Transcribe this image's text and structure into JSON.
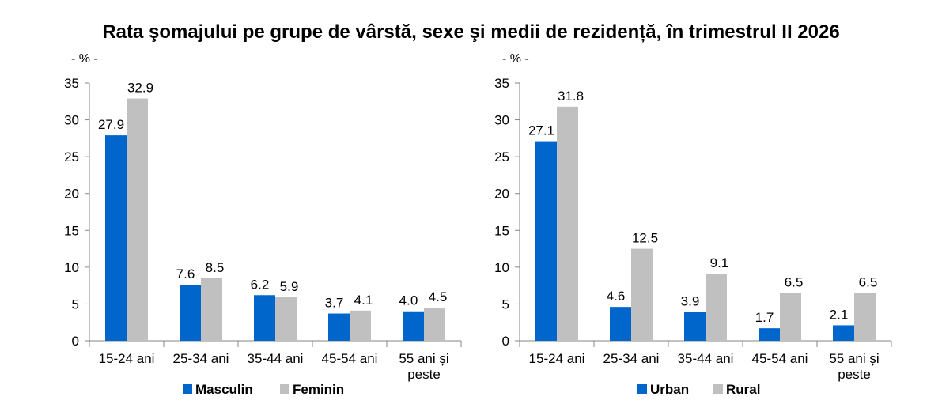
{
  "title": "Rata şomajului pe grupe de vârstă, sexe şi medii de rezidență, în trimestrul II 2026",
  "colors": {
    "series_a": "#0066cc",
    "series_b": "#c0c0c0",
    "axis": "#868686"
  },
  "chart_data": [
    {
      "type": "bar",
      "unit_label": "- % -",
      "categories": [
        [
          "15-24 ani"
        ],
        [
          "25-34 ani"
        ],
        [
          "35-44 ani"
        ],
        [
          "45-54 ani"
        ],
        [
          "55 ani și",
          "peste"
        ]
      ],
      "series": [
        {
          "name": "Masculin",
          "values": [
            27.9,
            7.6,
            6.2,
            3.7,
            4.0
          ],
          "labels": [
            "27.9",
            "7.6",
            "6.2",
            "3.7",
            "4.0"
          ],
          "color": "#0066cc"
        },
        {
          "name": "Feminin",
          "values": [
            32.9,
            8.5,
            5.9,
            4.1,
            4.5
          ],
          "labels": [
            "32.9",
            "8.5",
            "5.9",
            "4.1",
            "4.5"
          ],
          "color": "#c0c0c0"
        }
      ],
      "ylim": [
        0,
        35
      ],
      "yticks": [
        0,
        5,
        10,
        15,
        20,
        25,
        30,
        35
      ],
      "grid": false,
      "legend": "bottom"
    },
    {
      "type": "bar",
      "unit_label": "- % -",
      "categories": [
        [
          "15-24 ani"
        ],
        [
          "25-34 ani"
        ],
        [
          "35-44 ani"
        ],
        [
          "45-54 ani"
        ],
        [
          "55 ani și",
          "peste"
        ]
      ],
      "series": [
        {
          "name": "Urban",
          "values": [
            27.1,
            4.6,
            3.9,
            1.7,
            2.1
          ],
          "labels": [
            "27.1",
            "4.6",
            "3.9",
            "1.7",
            "2.1"
          ],
          "color": "#0066cc"
        },
        {
          "name": "Rural",
          "values": [
            31.8,
            12.5,
            9.1,
            6.5,
            6.5
          ],
          "labels": [
            "31.8",
            "12.5",
            "9.1",
            "6.5",
            "6.5"
          ],
          "color": "#c0c0c0"
        }
      ],
      "ylim": [
        0,
        35
      ],
      "yticks": [
        0,
        5,
        10,
        15,
        20,
        25,
        30,
        35
      ],
      "grid": false,
      "legend": "bottom"
    }
  ]
}
